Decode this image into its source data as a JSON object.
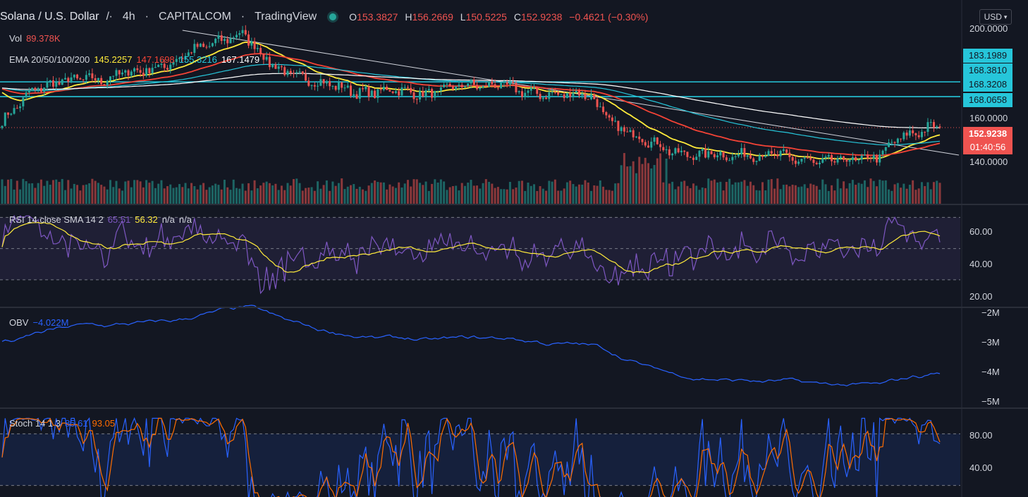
{
  "header": {
    "symbol": "Solana / U.S. Dollar",
    "interval": "4h",
    "exchange": "CAPITALCOM",
    "platform": "TradingView",
    "ohlc": {
      "o_label": "O",
      "o": "153.3827",
      "h_label": "H",
      "h": "156.2669",
      "l_label": "L",
      "l": "150.5225",
      "c_label": "C",
      "c": "152.9238",
      "change": "−0.4621 (−0.30%)"
    },
    "currency": "USD"
  },
  "legends": {
    "vol": {
      "label": "Vol",
      "value": "89.378K"
    },
    "ema": {
      "label": "EMA 20/50/100/200",
      "values": [
        "145.2257",
        "147.1698",
        "155.3216",
        "167.1479"
      ]
    },
    "rsi": {
      "label": "RSI 14 close SMA 14 2",
      "values": [
        "65.51",
        "56.32",
        "n/a",
        "n/a"
      ]
    },
    "obv": {
      "label": "OBV",
      "value": "−4.022M"
    },
    "stoch": {
      "label": "Stoch 14 1 3",
      "values": [
        "85.61",
        "93.05"
      ]
    }
  },
  "price_axis": {
    "ticks": [
      "200.0000",
      "160.0000",
      "140.0000"
    ],
    "tags": [
      "183.1989",
      "168.3810",
      "168.3208",
      "168.0658",
      "152.9238",
      "01:40:56"
    ]
  },
  "rsi_axis": {
    "ticks": [
      "60.00",
      "40.00",
      "20.00"
    ]
  },
  "obv_axis": {
    "ticks": [
      "−2M",
      "−3M",
      "−4M",
      "−5M"
    ]
  },
  "stoch_axis": {
    "ticks": [
      "80.00",
      "40.00"
    ]
  },
  "colors": {
    "background": "#131722",
    "up": "#26a69a",
    "down": "#ef5350",
    "ema20": "#ffeb3b",
    "ema50": "#f44336",
    "ema100": "#26c6da",
    "ema200": "#ffffff",
    "rsi": "#7e57c2",
    "rsi_sma": "#ffeb3b",
    "obv": "#2962ff",
    "stoch_k": "#2962ff",
    "stoch_d": "#ff6d00"
  },
  "chart_data": {
    "type": "candlestick",
    "title": "Solana / U.S. Dollar 4h",
    "price_range": [
      125,
      205
    ],
    "horizontal_levels": [
      168.07,
      175.3
    ],
    "trendline": {
      "from": [
        60,
        200.5
      ],
      "to": [
        340,
        139.5
      ]
    },
    "anchors": [
      [
        0,
        156
      ],
      [
        4,
        162
      ],
      [
        10,
        171
      ],
      [
        18,
        175
      ],
      [
        26,
        177
      ],
      [
        34,
        176
      ],
      [
        40,
        180
      ],
      [
        48,
        181
      ],
      [
        56,
        184
      ],
      [
        62,
        190
      ],
      [
        68,
        193
      ],
      [
        74,
        196
      ],
      [
        80,
        199
      ],
      [
        84,
        193
      ],
      [
        88,
        186
      ],
      [
        94,
        180
      ],
      [
        100,
        177
      ],
      [
        106,
        175
      ],
      [
        112,
        173
      ],
      [
        118,
        170
      ],
      [
        124,
        170
      ],
      [
        130,
        172
      ],
      [
        136,
        170
      ],
      [
        142,
        169
      ],
      [
        148,
        172
      ],
      [
        154,
        174
      ],
      [
        160,
        173
      ],
      [
        166,
        174
      ],
      [
        172,
        171
      ],
      [
        180,
        169
      ],
      [
        186,
        169
      ],
      [
        192,
        170
      ],
      [
        196,
        168
      ],
      [
        200,
        160
      ],
      [
        204,
        153
      ],
      [
        208,
        151
      ],
      [
        214,
        147
      ],
      [
        218,
        145
      ],
      [
        224,
        140
      ],
      [
        228,
        140
      ],
      [
        232,
        139
      ],
      [
        236,
        141
      ],
      [
        240,
        139
      ],
      [
        244,
        139
      ],
      [
        248,
        140
      ],
      [
        252,
        139
      ],
      [
        256,
        140
      ],
      [
        260,
        139
      ],
      [
        264,
        137
      ],
      [
        268,
        137
      ],
      [
        272,
        135
      ],
      [
        276,
        137
      ],
      [
        280,
        137
      ],
      [
        284,
        137
      ],
      [
        288,
        138
      ],
      [
        292,
        139
      ],
      [
        296,
        145
      ],
      [
        300,
        149
      ],
      [
        304,
        150
      ],
      [
        308,
        153
      ],
      [
        312,
        153
      ]
    ],
    "rsi_range": [
      15,
      72
    ],
    "rsi_levels": [
      30,
      50,
      70
    ],
    "obv_range": [
      -5.1,
      -1.9
    ],
    "stoch_range": [
      0,
      100
    ],
    "stoch_levels": [
      20,
      80
    ]
  }
}
